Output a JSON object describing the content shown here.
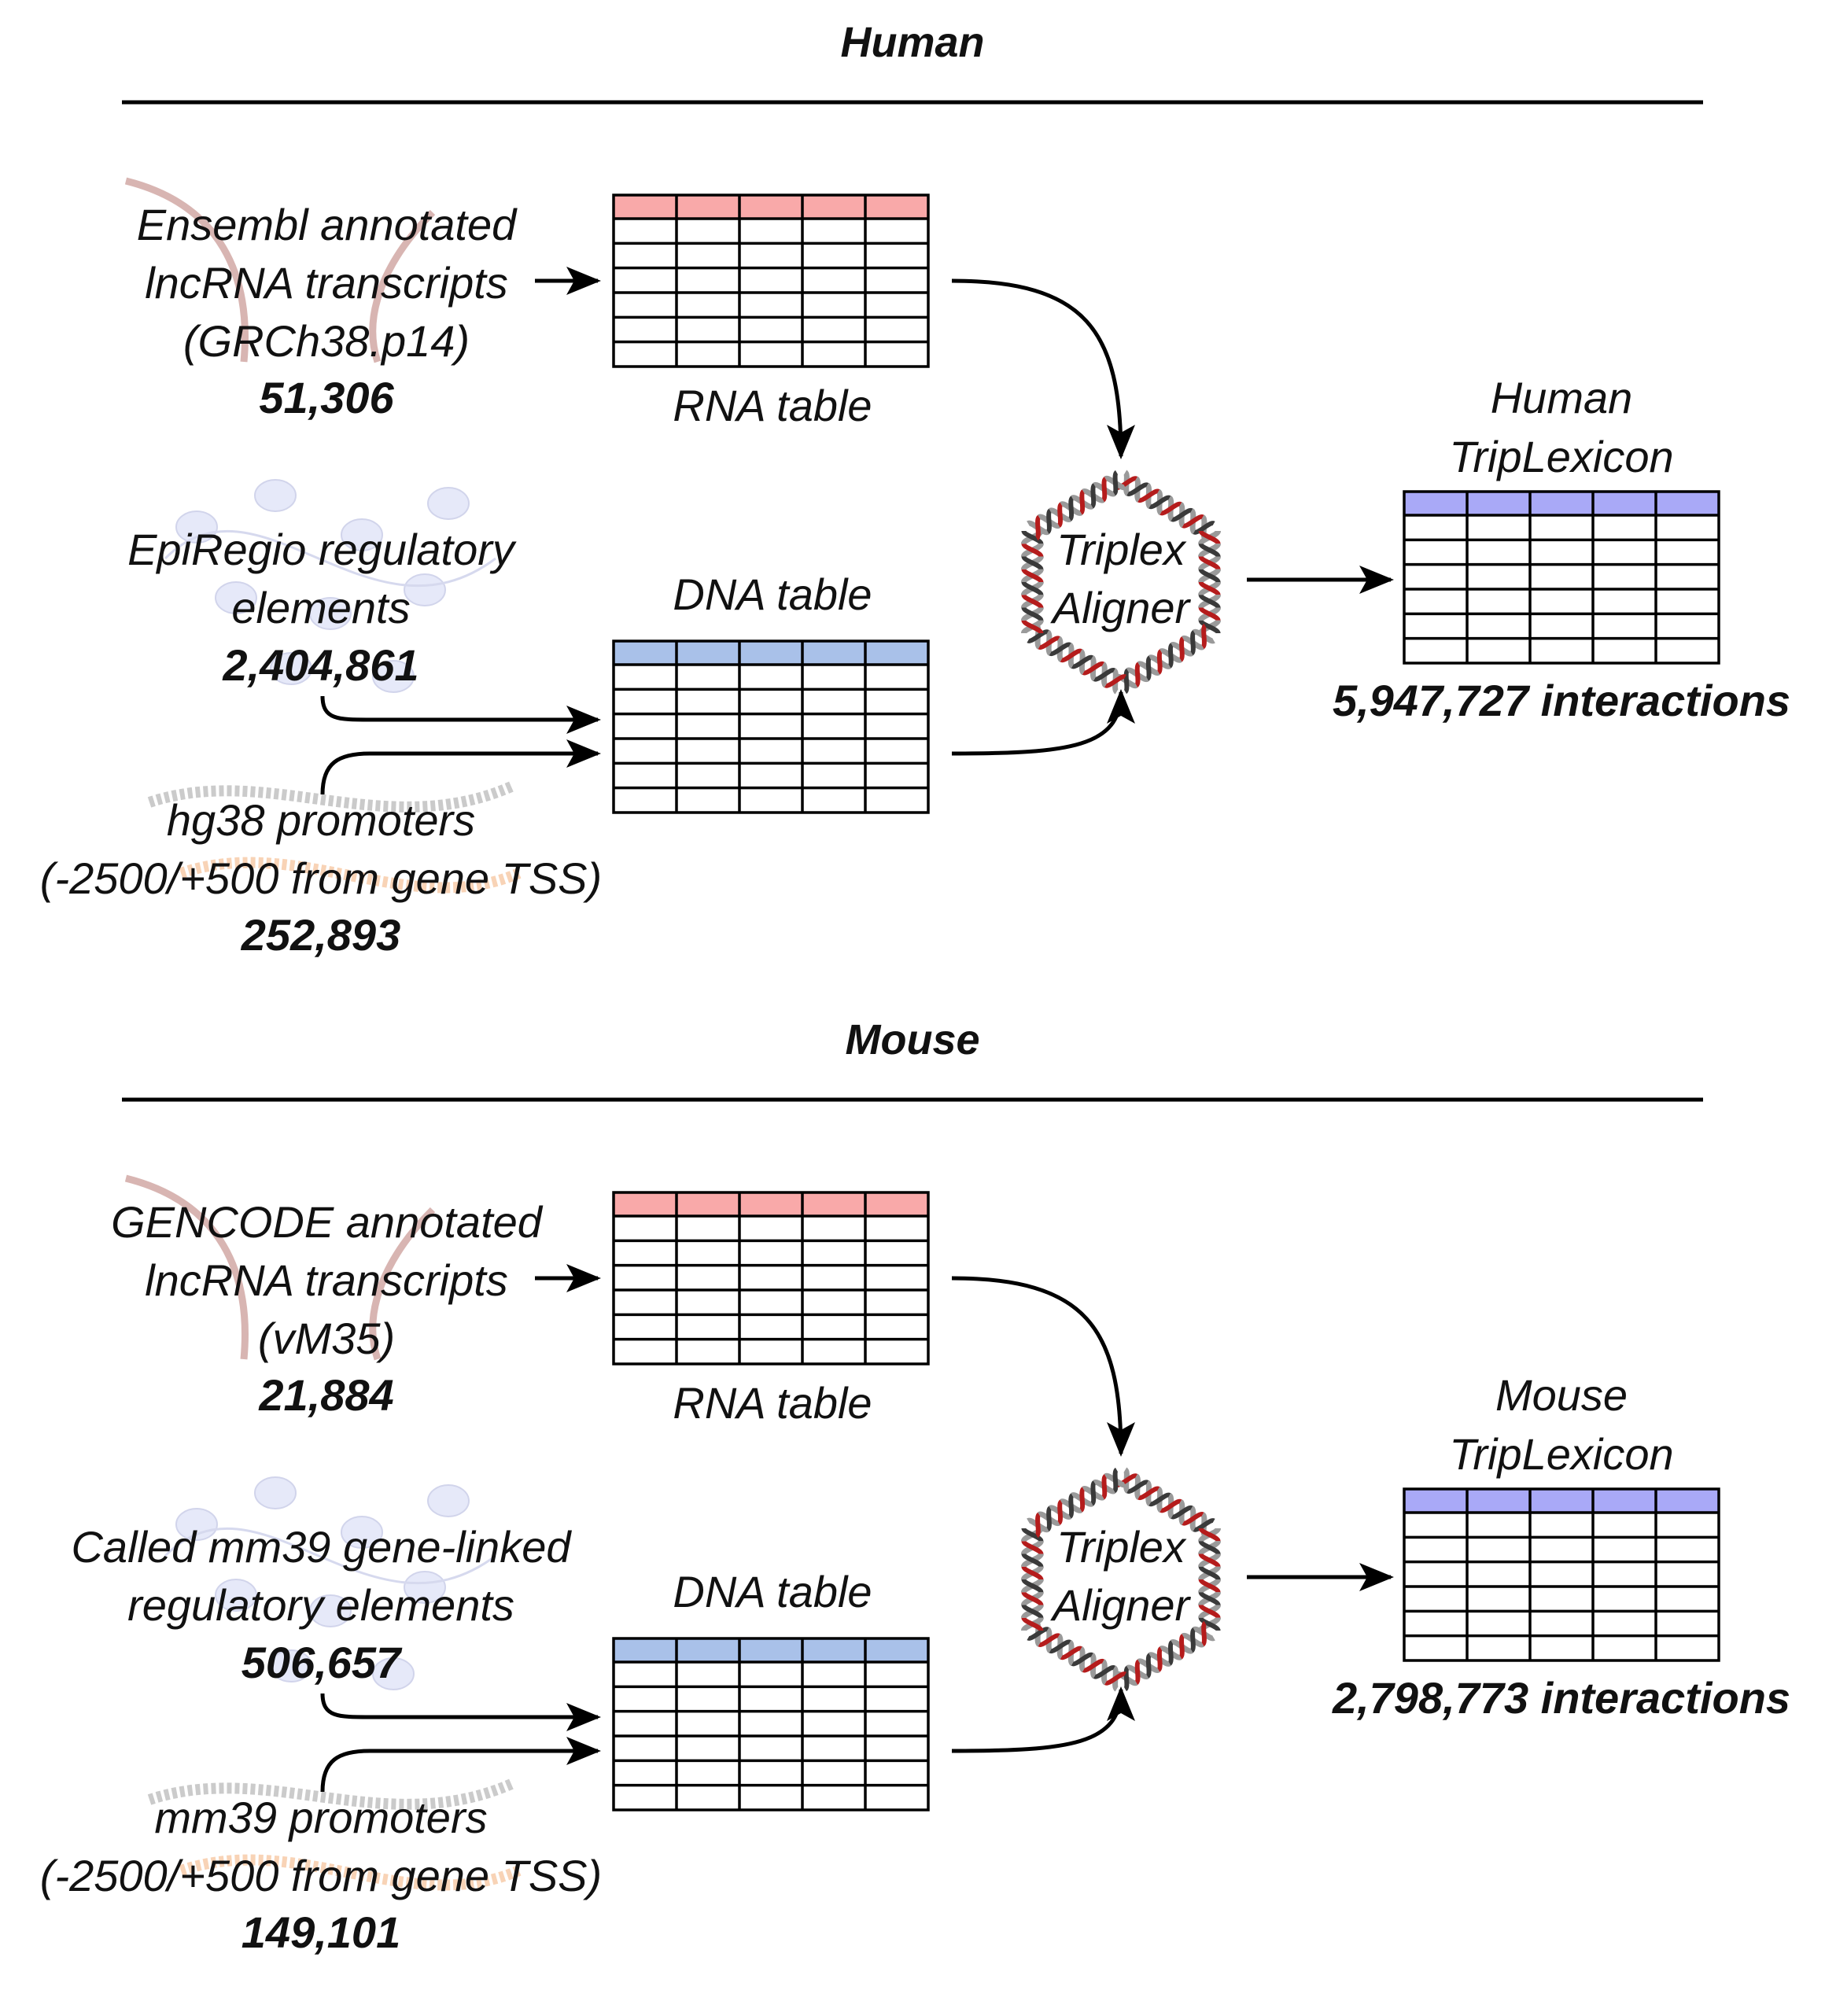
{
  "colors": {
    "rna_header": "#f9a9a9",
    "dna_header": "#a9c1e9",
    "lexicon_header": "#a9a9f7",
    "helix_red": "#b51c1c",
    "helix_grey": "#9a9a9a",
    "helix_dark": "#3a3a3a"
  },
  "human": {
    "title": "Human",
    "rna_source": [
      "Ensembl annotated",
      "lncRNA transcripts",
      "(GRCh38.p14)"
    ],
    "rna_count": "51,306",
    "rna_table_label": "RNA table",
    "reg_source": [
      "EpiRegio regulatory",
      "elements"
    ],
    "reg_count": "2,404,861",
    "prom_source": [
      "hg38 promoters",
      "(-2500/+500 from gene TSS)"
    ],
    "prom_count": "252,893",
    "dna_table_label": "DNA table",
    "aligner": [
      "Triplex",
      "Aligner"
    ],
    "lexicon": [
      "Human",
      "TripLexicon"
    ],
    "interactions": "5,947,727 interactions"
  },
  "mouse": {
    "title": "Mouse",
    "rna_source": [
      "GENCODE annotated",
      "lncRNA transcripts",
      "(vM35)"
    ],
    "rna_count": "21,884",
    "rna_table_label": "RNA table",
    "reg_source": [
      "Called mm39 gene-linked",
      "regulatory elements"
    ],
    "reg_count": "506,657",
    "prom_source": [
      "mm39 promoters",
      "(-2500/+500 from gene TSS)"
    ],
    "prom_count": "149,101",
    "dna_table_label": "DNA table",
    "aligner": [
      "Triplex",
      "Aligner"
    ],
    "lexicon": [
      "Mouse",
      "TripLexicon"
    ],
    "interactions": "2,798,773 interactions"
  }
}
